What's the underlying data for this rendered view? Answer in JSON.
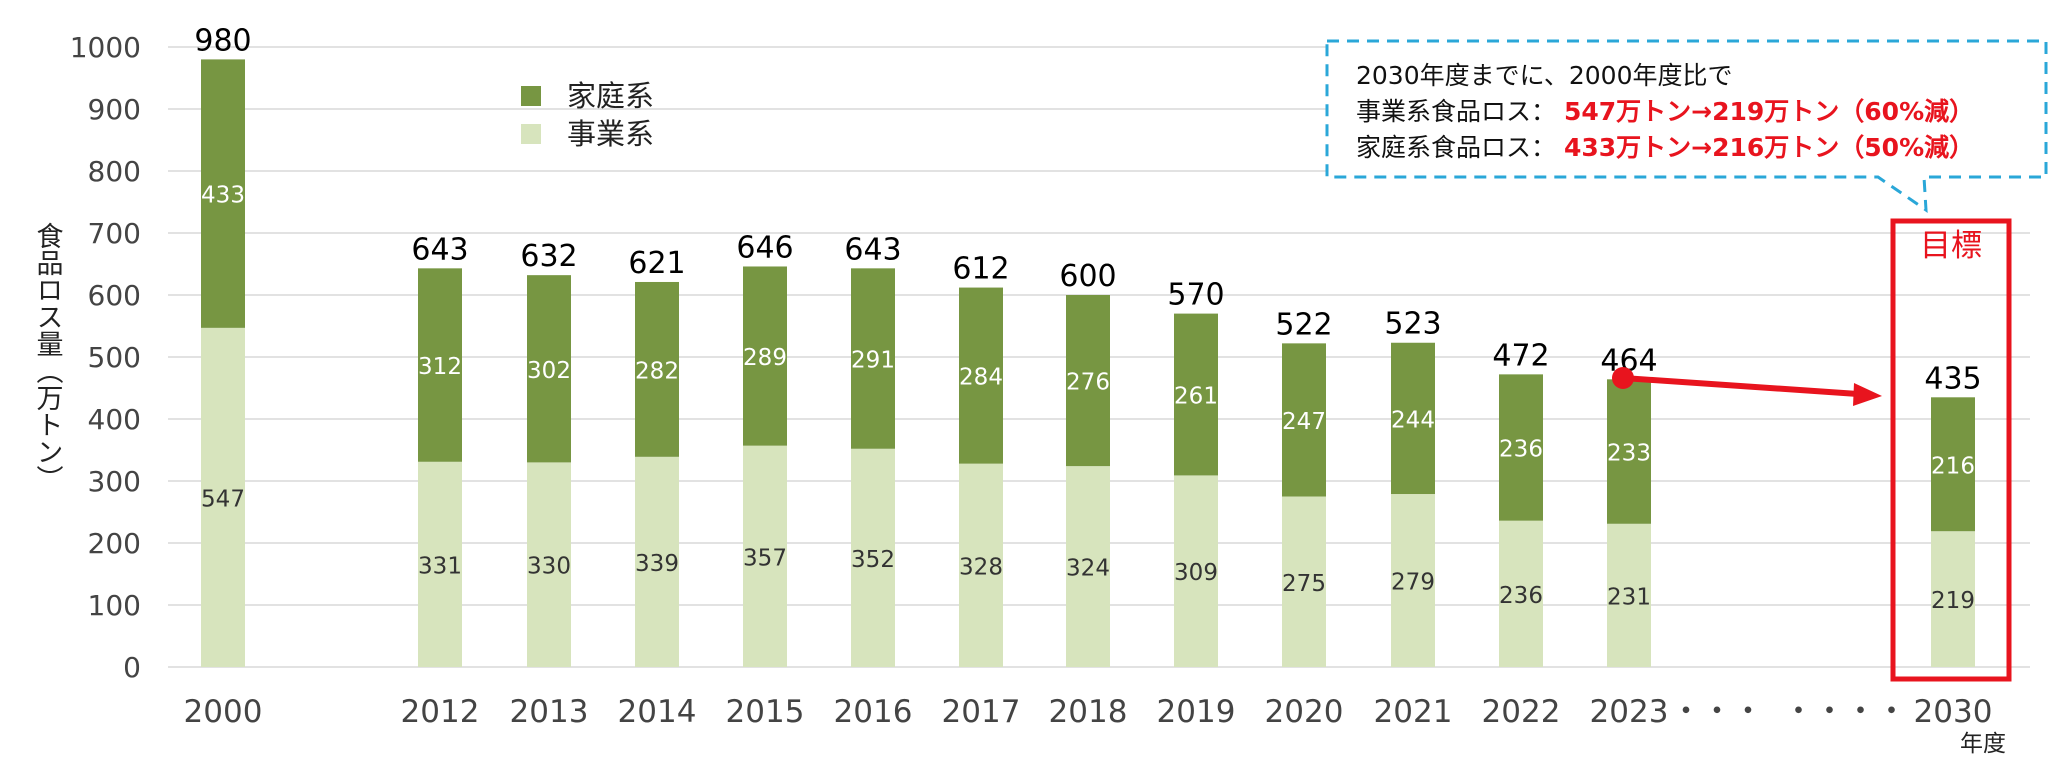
{
  "colors": {
    "household": "#779642",
    "business": "#d7e4bd",
    "grid": "#d9d9d9",
    "accent_red": "#e8141e",
    "callout_border": "#2aa7d8"
  },
  "chart_data": {
    "type": "bar",
    "stacked": true,
    "categories": [
      "2000",
      "2012",
      "2013",
      "2014",
      "2015",
      "2016",
      "2017",
      "2018",
      "2019",
      "2020",
      "2021",
      "2022",
      "2023",
      "2030"
    ],
    "series": [
      {
        "name": "事業系",
        "values": [
          547,
          331,
          330,
          339,
          357,
          352,
          328,
          324,
          309,
          275,
          279,
          236,
          231,
          219
        ]
      },
      {
        "name": "家庭系",
        "values": [
          433,
          312,
          302,
          282,
          289,
          291,
          284,
          276,
          261,
          247,
          244,
          236,
          233,
          216
        ]
      }
    ],
    "totals": [
      980,
      643,
      632,
      621,
      646,
      643,
      612,
      600,
      570,
      522,
      523,
      472,
      464,
      435
    ],
    "ylabel": "食品ロス量（万トン）",
    "xunit": "年度",
    "ylim": [
      0,
      1000
    ],
    "yticks": [
      0,
      100,
      200,
      300,
      400,
      500,
      600,
      700,
      800,
      900,
      1000
    ],
    "gap_markers": [
      "・・・",
      "・・・・"
    ],
    "grid": true,
    "legend_position": "top-left"
  },
  "target": {
    "label": "目標"
  },
  "callout": {
    "line1": "2030年度までに、2000年度比で",
    "line2_prefix": "事業系食品ロス：",
    "line2_value": "547万トン→219万トン（60%減）",
    "line3_prefix": "家庭系食品ロス：",
    "line3_value": "433万トン→216万トン（50%減）"
  }
}
